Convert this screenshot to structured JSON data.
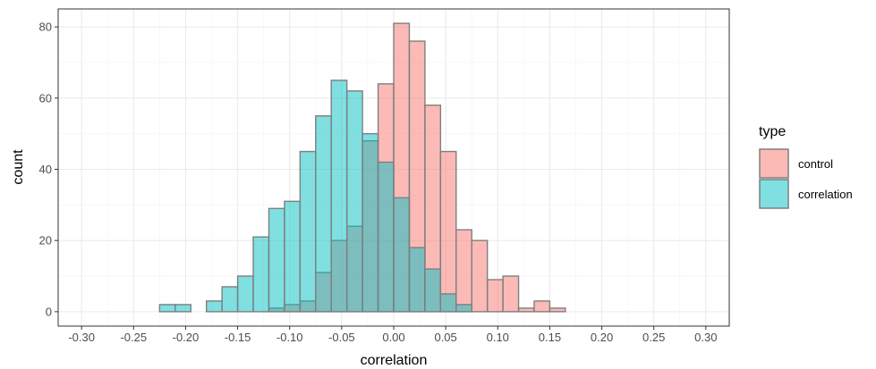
{
  "chart_data": {
    "type": "bar",
    "subtype": "overlapping-histogram",
    "title": "",
    "xlabel": "correlation",
    "ylabel": "count",
    "xlim": [
      -0.3,
      0.3
    ],
    "ylim": [
      0,
      80
    ],
    "xticks": [
      "-0.30",
      "-0.25",
      "-0.20",
      "-0.15",
      "-0.10",
      "-0.05",
      "0.00",
      "0.05",
      "0.10",
      "0.15",
      "0.20",
      "0.25",
      "0.30"
    ],
    "xtick_values": [
      -0.3,
      -0.25,
      -0.2,
      -0.15,
      -0.1,
      -0.05,
      0,
      0.05,
      0.1,
      0.15,
      0.2,
      0.25,
      0.3
    ],
    "yticks": [
      "0",
      "20",
      "40",
      "60",
      "80"
    ],
    "ytick_values": [
      0,
      20,
      40,
      60,
      80
    ],
    "grid": true,
    "legend": {
      "title": "type",
      "position": "right"
    },
    "bin_width": 0.015,
    "bin_starts": [
      -0.3,
      -0.285,
      -0.27,
      -0.255,
      -0.24,
      -0.225,
      -0.21,
      -0.195,
      -0.18,
      -0.165,
      -0.15,
      -0.135,
      -0.12,
      -0.105,
      -0.09,
      -0.075,
      -0.06,
      -0.045,
      -0.03,
      -0.015,
      0,
      0.015,
      0.03,
      0.045,
      0.06,
      0.075,
      0.09,
      0.105,
      0.12,
      0.135,
      0.15,
      0.165,
      0.18,
      0.195,
      0.21,
      0.225,
      0.24,
      0.255,
      0.27,
      0.285
    ],
    "series": [
      {
        "name": "control",
        "color": "#F8766D",
        "values": [
          0,
          0,
          0,
          0,
          0,
          0,
          0,
          0,
          0,
          0,
          0,
          0,
          1,
          2,
          3,
          11,
          20,
          24,
          48,
          64,
          81,
          76,
          58,
          45,
          23,
          20,
          9,
          10,
          1,
          3,
          1,
          0,
          0,
          0,
          0,
          0,
          0,
          0,
          0,
          0
        ]
      },
      {
        "name": "correlation",
        "color": "#00BFC4",
        "values": [
          0,
          0,
          0,
          0,
          0,
          2,
          2,
          0,
          3,
          7,
          10,
          21,
          29,
          31,
          45,
          55,
          65,
          62,
          50,
          42,
          32,
          18,
          12,
          5,
          2,
          0,
          0,
          0,
          0,
          0,
          0,
          0,
          0,
          0,
          0,
          0,
          0,
          0,
          0,
          0
        ]
      }
    ]
  }
}
